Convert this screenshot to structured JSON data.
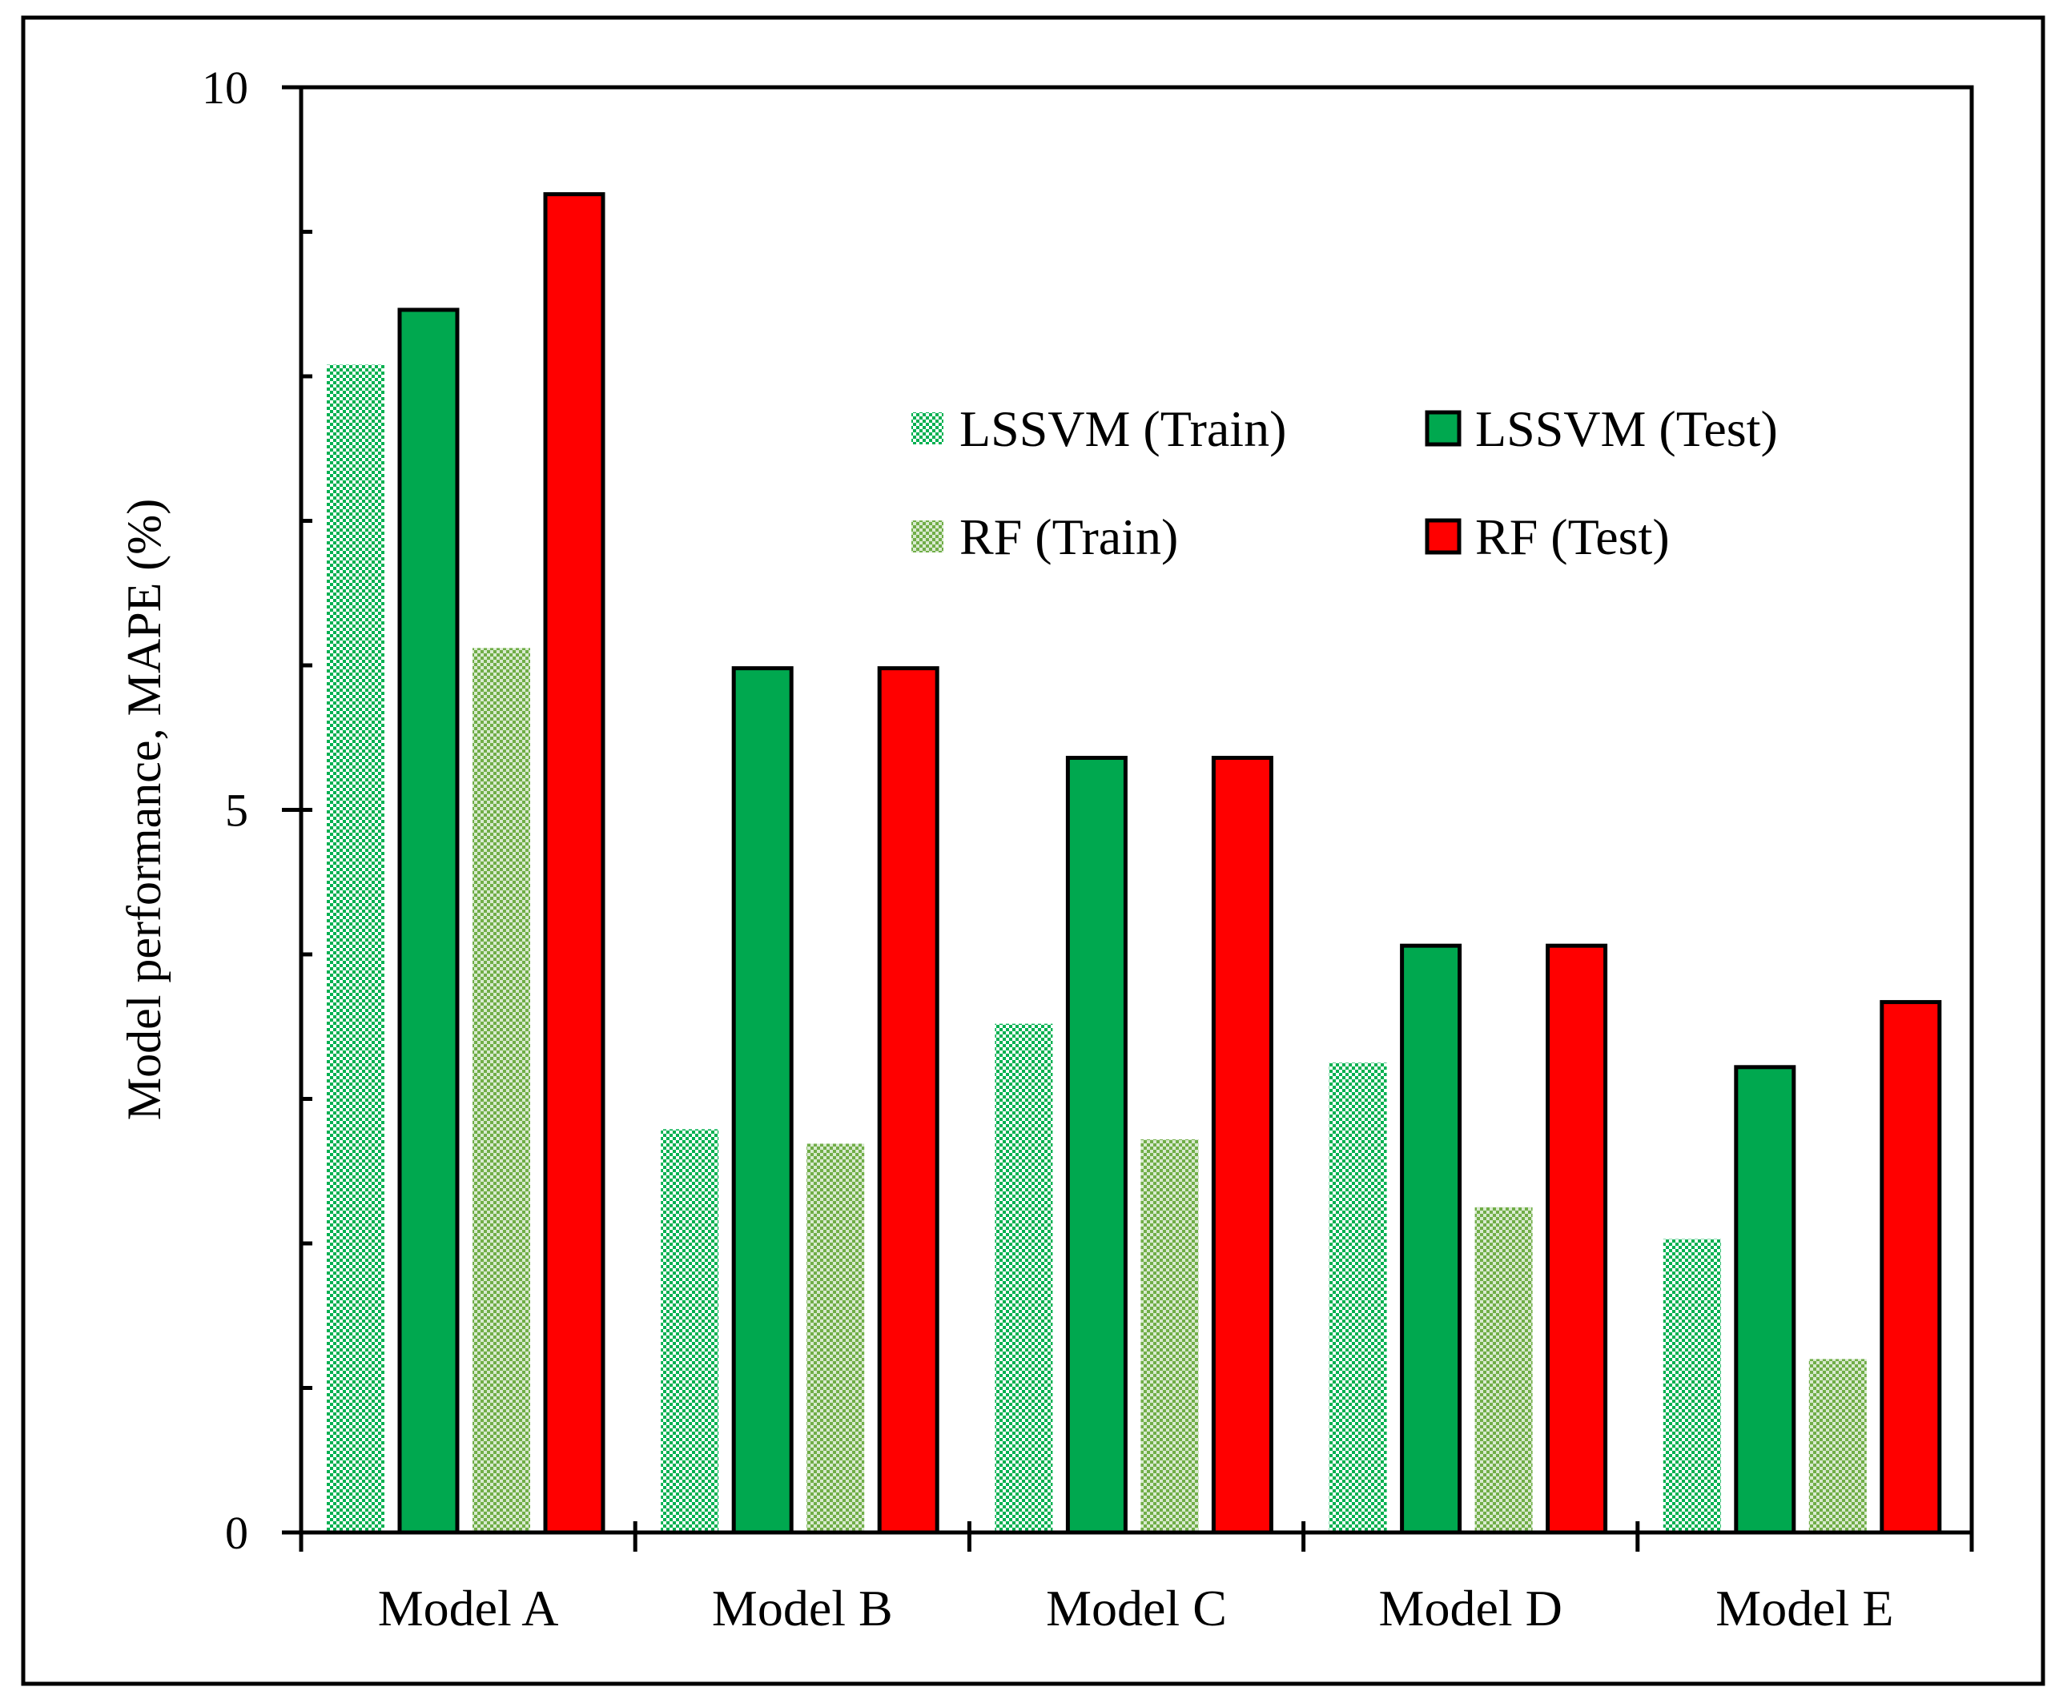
{
  "chart_data": {
    "type": "bar",
    "title": "",
    "xlabel": "",
    "ylabel": "Model performance, MAPE (%)",
    "ylim": [
      0,
      10
    ],
    "y_major_ticks": [
      0,
      5,
      10
    ],
    "y_minor_step": 1,
    "grid": false,
    "legend_position": "top-right",
    "categories": [
      "Model A",
      "Model B",
      "Model C",
      "Model D",
      "Model E"
    ],
    "series": [
      {
        "name": "LSSVM (Train)",
        "color": "#00b050",
        "pattern": "checker-light",
        "values": [
          8.08,
          2.79,
          3.52,
          3.25,
          2.03
        ]
      },
      {
        "name": "LSSVM (Test)",
        "color": "#00a84f",
        "pattern": "solid",
        "values": [
          8.46,
          5.98,
          5.36,
          4.06,
          3.22
        ]
      },
      {
        "name": "RF (Train)",
        "color": "#70ad47",
        "pattern": "checker-olive",
        "values": [
          6.12,
          2.69,
          2.72,
          2.25,
          1.2
        ]
      },
      {
        "name": "RF (Test)",
        "color": "#ff0000",
        "pattern": "solid",
        "values": [
          9.26,
          5.98,
          5.36,
          4.06,
          3.67
        ]
      }
    ]
  }
}
